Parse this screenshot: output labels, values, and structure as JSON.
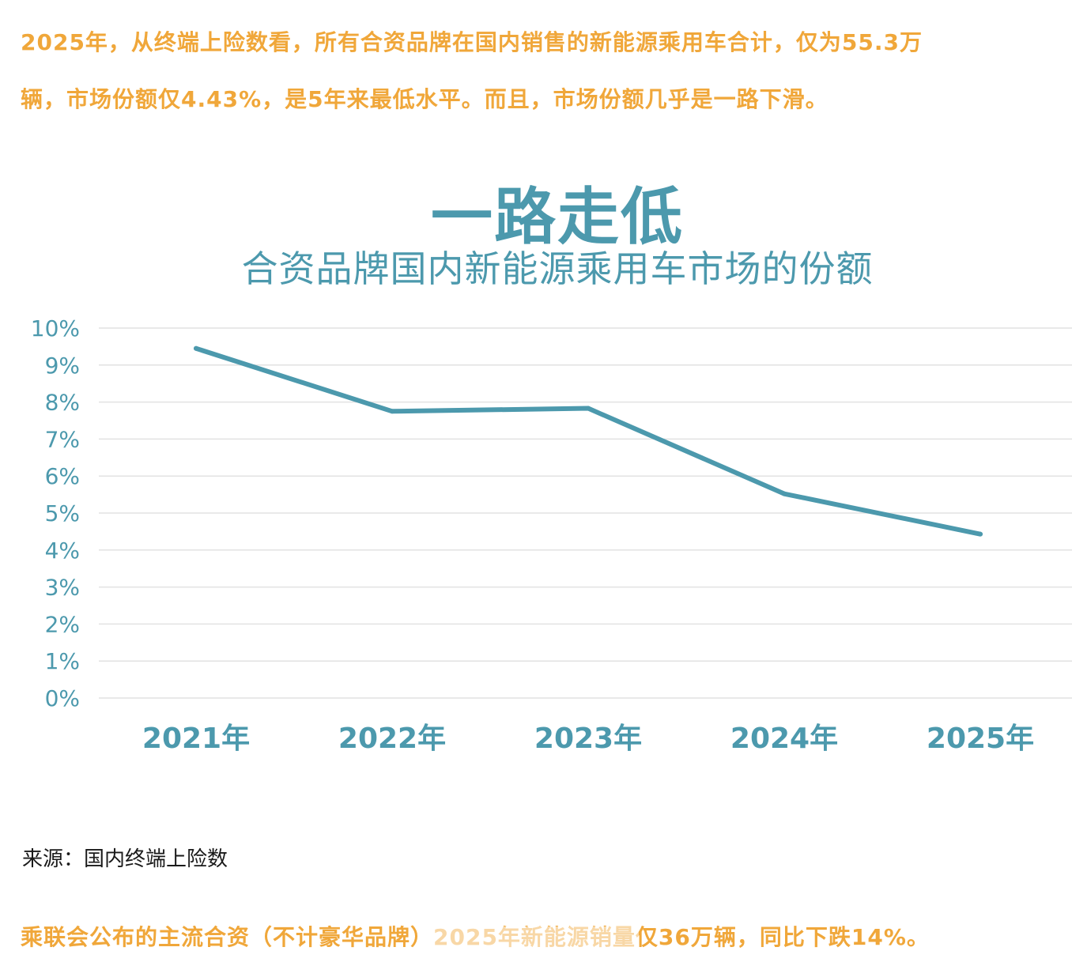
{
  "intro": {
    "line1": "2025年，从终端上险数看，所有合资品牌在国内销售的新能源乘用车合计，仅为55.3万",
    "line2": "辆，市场份额仅4.43%，是5年来最低水平。而且，市场份额几乎是一路下滑。"
  },
  "chart_data": {
    "type": "line",
    "title": "一路走低",
    "subtitle": "合资品牌国内新能源乘用车市场的份额",
    "categories": [
      "2021年",
      "2022年",
      "2023年",
      "2024年",
      "2025年"
    ],
    "series": [
      {
        "values": [
          9.45,
          7.75,
          7.83,
          5.52,
          4.43
        ]
      }
    ],
    "ylim": [
      0,
      10
    ],
    "yticks": [
      {
        "value": 0,
        "label": "0%"
      },
      {
        "value": 1,
        "label": "1%"
      },
      {
        "value": 2,
        "label": "2%"
      },
      {
        "value": 3,
        "label": "3%"
      },
      {
        "value": 4,
        "label": "4%"
      },
      {
        "value": 5,
        "label": "5%"
      },
      {
        "value": 6,
        "label": "6%"
      },
      {
        "value": 7,
        "label": "7%"
      },
      {
        "value": 8,
        "label": "8%"
      },
      {
        "value": 9,
        "label": "9%"
      },
      {
        "value": 10,
        "label": "10%"
      }
    ],
    "grid": true,
    "legend": "none",
    "colors": {
      "line": "#4c99ad",
      "grid": "#e2e2e2",
      "text": "#4c99ad"
    }
  },
  "source": "来源：国内终端上险数",
  "outro": "乘联会公布的主流合资（不计豪华品牌）2025年新能源销量仅36万辆，同比下跌14%。"
}
